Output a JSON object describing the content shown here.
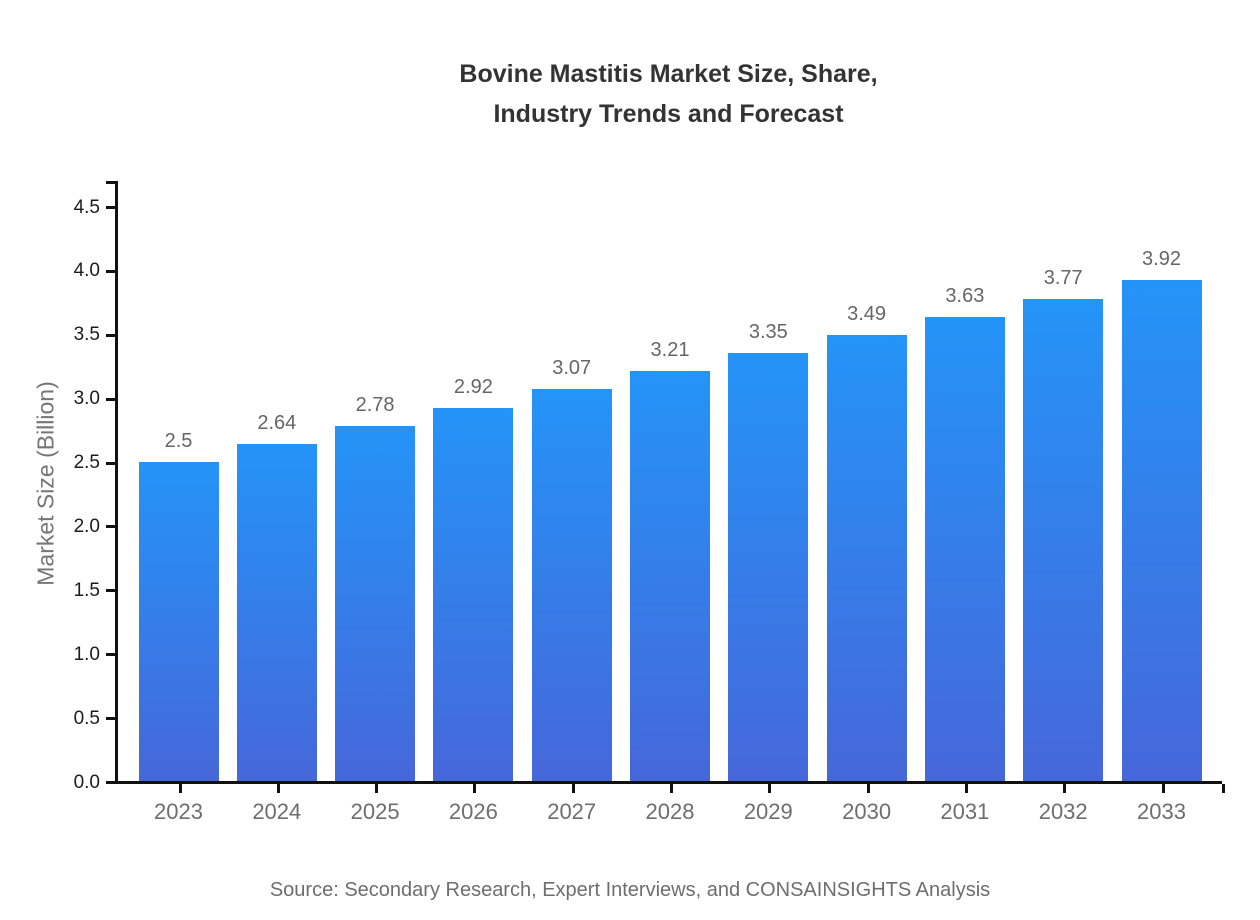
{
  "title": {
    "line1": "Bovine Mastitis Market Size, Share,",
    "line2": "Industry Trends and Forecast"
  },
  "source_note": "Source: Secondary Research, Expert Interviews, and CONSAINSIGHTS Analysis",
  "chart_data": {
    "type": "bar",
    "title": "Bovine Mastitis Market Size, Share, Industry Trends and Forecast",
    "categories": [
      "2023",
      "2024",
      "2025",
      "2026",
      "2027",
      "2028",
      "2029",
      "2030",
      "2031",
      "2032",
      "2033"
    ],
    "values": [
      2.5,
      2.64,
      2.78,
      2.92,
      3.07,
      3.21,
      3.35,
      3.49,
      3.63,
      3.77,
      3.92
    ],
    "value_labels": [
      "2.5",
      "2.64",
      "2.78",
      "2.92",
      "3.07",
      "3.21",
      "3.35",
      "3.49",
      "3.63",
      "3.77",
      "3.92"
    ],
    "xlabel": "",
    "ylabel": "Market Size (Billion)",
    "ylim": [
      0,
      4.5
    ],
    "ytick_labels": [
      "0.0",
      "0.5",
      "1.0",
      "1.5",
      "2.0",
      "2.5",
      "3.0",
      "3.5",
      "4.0",
      "4.5"
    ],
    "grid": false,
    "legend": false,
    "colors": {
      "bar_gradient_top": "#2494f8",
      "bar_gradient_bottom": "#4667da",
      "axis": "#111111",
      "title_text": "#333333",
      "ytick_text": "#1c1c1c",
      "xtick_text": "#6e6e6e",
      "value_label_text": "#666666",
      "source_text": "#6e6e6e"
    }
  }
}
